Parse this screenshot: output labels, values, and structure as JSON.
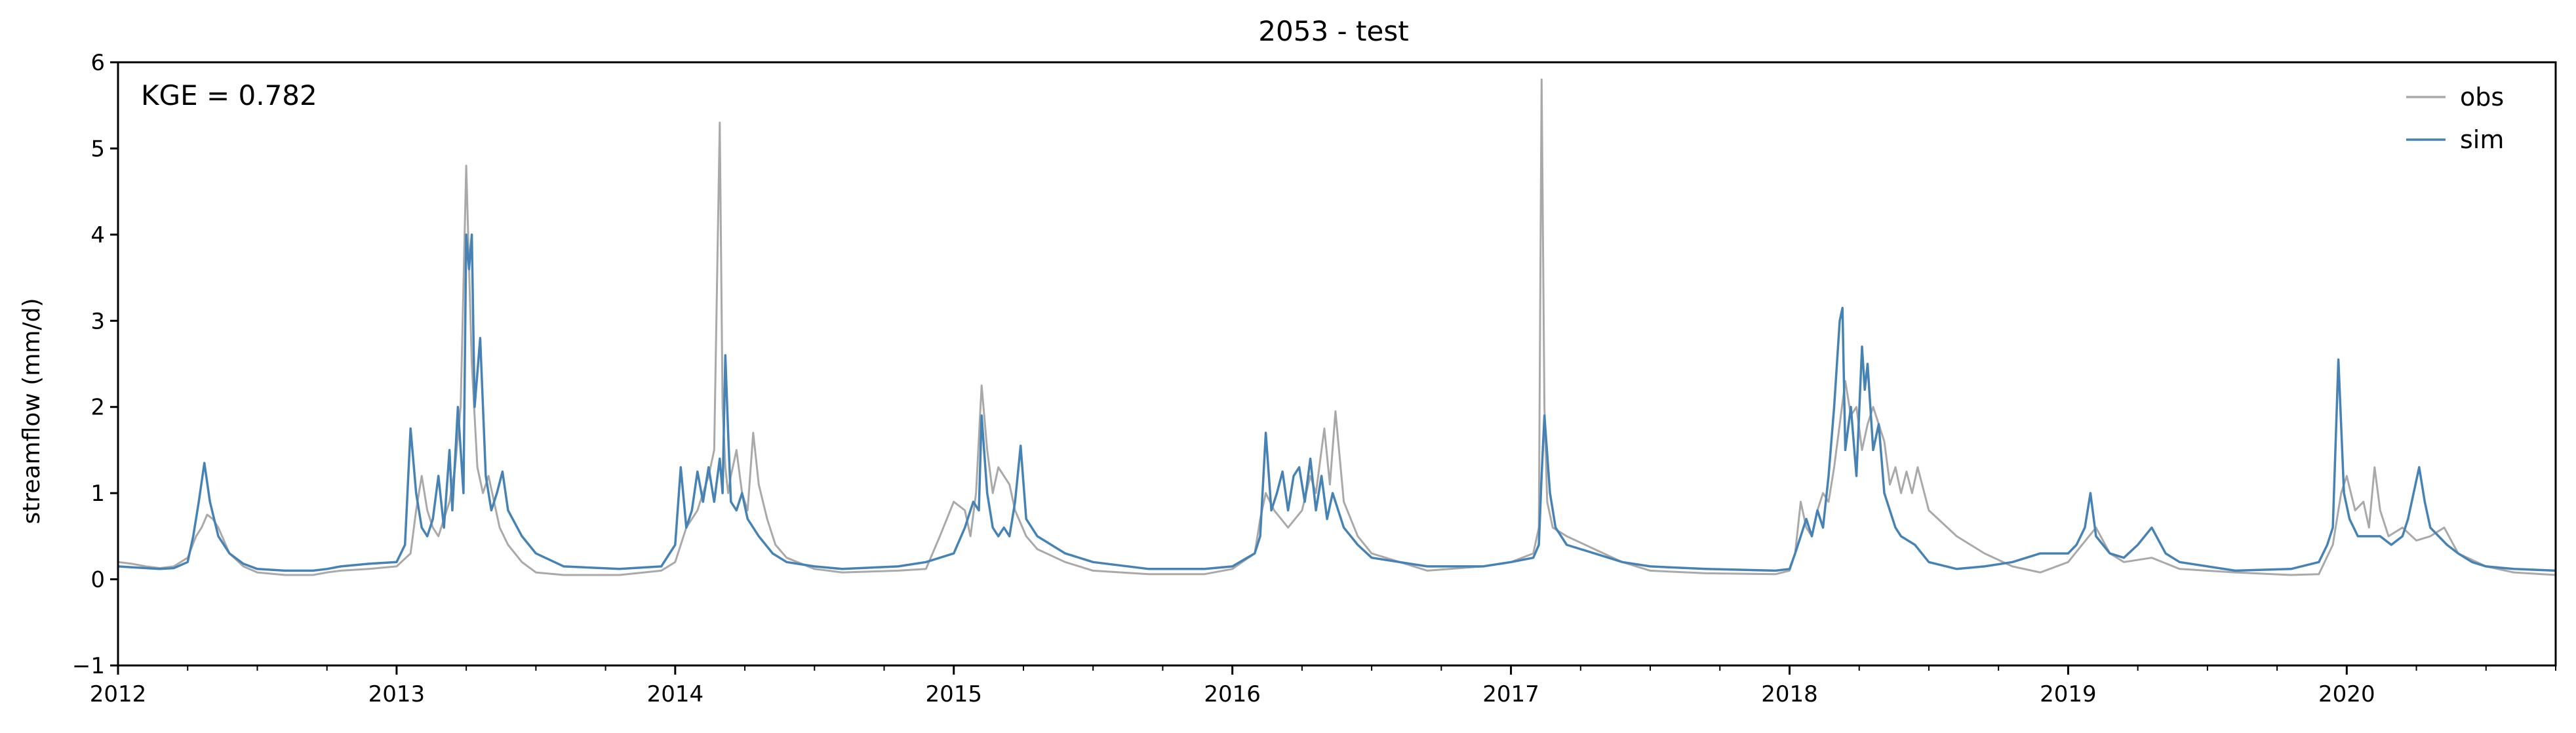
{
  "chart_data": {
    "type": "line",
    "title": "2053 - test",
    "xlabel": "",
    "ylabel": "streamflow (mm/d)",
    "annotation": "KGE = 0.782",
    "xlim": [
      2012.0,
      2020.75
    ],
    "ylim": [
      -1,
      6
    ],
    "x_ticks": [
      "2012",
      "2013",
      "2014",
      "2015",
      "2016",
      "2017",
      "2018",
      "2019",
      "2020"
    ],
    "y_ticks": [
      "−1",
      "0",
      "1",
      "2",
      "3",
      "4",
      "5",
      "6"
    ],
    "grid": false,
    "legend_position": "top-right",
    "series": [
      {
        "name": "obs",
        "color": "#a9a9a9",
        "x": [
          2012.0,
          2012.05,
          2012.1,
          2012.15,
          2012.2,
          2012.25,
          2012.28,
          2012.3,
          2012.32,
          2012.34,
          2012.36,
          2012.38,
          2012.4,
          2012.45,
          2012.5,
          2012.6,
          2012.7,
          2012.75,
          2012.8,
          2012.9,
          2013.0,
          2013.05,
          2013.07,
          2013.09,
          2013.11,
          2013.13,
          2013.15,
          2013.17,
          2013.19,
          2013.21,
          2013.23,
          2013.25,
          2013.27,
          2013.29,
          2013.31,
          2013.33,
          2013.35,
          2013.37,
          2013.4,
          2013.45,
          2013.5,
          2013.6,
          2013.8,
          2013.95,
          2014.0,
          2014.04,
          2014.08,
          2014.1,
          2014.12,
          2014.14,
          2014.16,
          2014.17,
          2014.18,
          2014.19,
          2014.2,
          2014.22,
          2014.24,
          2014.26,
          2014.28,
          2014.3,
          2014.33,
          2014.36,
          2014.4,
          2014.5,
          2014.6,
          2014.8,
          2014.9,
          2014.95,
          2015.0,
          2015.04,
          2015.06,
          2015.08,
          2015.1,
          2015.12,
          2015.14,
          2015.16,
          2015.18,
          2015.2,
          2015.22,
          2015.26,
          2015.3,
          2015.4,
          2015.5,
          2015.7,
          2015.9,
          2016.0,
          2016.08,
          2016.1,
          2016.12,
          2016.15,
          2016.2,
          2016.25,
          2016.28,
          2016.3,
          2016.33,
          2016.35,
          2016.37,
          2016.4,
          2016.45,
          2016.5,
          2016.7,
          2016.9,
          2017.0,
          2017.08,
          2017.1,
          2017.11,
          2017.12,
          2017.13,
          2017.15,
          2017.2,
          2017.3,
          2017.4,
          2017.5,
          2017.7,
          2017.95,
          2018.0,
          2018.02,
          2018.04,
          2018.06,
          2018.08,
          2018.1,
          2018.12,
          2018.14,
          2018.16,
          2018.18,
          2018.2,
          2018.22,
          2018.24,
          2018.26,
          2018.28,
          2018.3,
          2018.32,
          2018.34,
          2018.36,
          2018.38,
          2018.4,
          2018.42,
          2018.44,
          2018.46,
          2018.5,
          2018.6,
          2018.7,
          2018.8,
          2018.9,
          2019.0,
          2019.05,
          2019.1,
          2019.15,
          2019.2,
          2019.3,
          2019.4,
          2019.6,
          2019.8,
          2019.9,
          2019.95,
          2019.98,
          2020.0,
          2020.03,
          2020.06,
          2020.08,
          2020.1,
          2020.12,
          2020.15,
          2020.2,
          2020.25,
          2020.3,
          2020.35,
          2020.4,
          2020.5,
          2020.6,
          2020.75
        ],
        "y": [
          0.2,
          0.18,
          0.15,
          0.13,
          0.15,
          0.25,
          0.5,
          0.6,
          0.75,
          0.7,
          0.6,
          0.45,
          0.3,
          0.15,
          0.08,
          0.05,
          0.05,
          0.08,
          0.1,
          0.12,
          0.15,
          0.3,
          0.8,
          1.2,
          0.8,
          0.6,
          0.5,
          0.7,
          0.9,
          1.3,
          2.0,
          4.8,
          2.5,
          1.3,
          1.0,
          1.2,
          0.9,
          0.6,
          0.4,
          0.2,
          0.08,
          0.05,
          0.05,
          0.1,
          0.2,
          0.6,
          0.8,
          1.0,
          1.2,
          1.5,
          5.3,
          2.0,
          1.3,
          1.0,
          1.2,
          1.5,
          1.0,
          0.8,
          1.7,
          1.1,
          0.7,
          0.4,
          0.25,
          0.12,
          0.08,
          0.1,
          0.12,
          0.5,
          0.9,
          0.8,
          0.5,
          1.0,
          2.25,
          1.5,
          1.0,
          1.3,
          1.2,
          1.1,
          0.8,
          0.5,
          0.35,
          0.2,
          0.1,
          0.06,
          0.06,
          0.12,
          0.3,
          0.7,
          1.0,
          0.8,
          0.6,
          0.8,
          1.2,
          1.0,
          1.75,
          1.1,
          1.95,
          0.9,
          0.5,
          0.3,
          0.1,
          0.15,
          0.2,
          0.3,
          0.6,
          5.8,
          2.0,
          0.9,
          0.6,
          0.5,
          0.35,
          0.2,
          0.1,
          0.07,
          0.06,
          0.1,
          0.3,
          0.9,
          0.6,
          0.5,
          0.8,
          1.0,
          0.9,
          1.3,
          1.8,
          2.3,
          1.9,
          2.0,
          1.5,
          1.8,
          2.0,
          1.8,
          1.6,
          1.1,
          1.3,
          1.0,
          1.25,
          1.0,
          1.3,
          0.8,
          0.5,
          0.3,
          0.15,
          0.08,
          0.2,
          0.4,
          0.6,
          0.3,
          0.2,
          0.25,
          0.12,
          0.08,
          0.05,
          0.06,
          0.4,
          1.0,
          1.2,
          0.8,
          0.9,
          0.6,
          1.3,
          0.8,
          0.5,
          0.6,
          0.45,
          0.5,
          0.6,
          0.3,
          0.15,
          0.08,
          0.05
        ]
      },
      {
        "name": "sim",
        "color": "#4682b4",
        "x": [
          2012.0,
          2012.05,
          2012.1,
          2012.15,
          2012.2,
          2012.25,
          2012.27,
          2012.29,
          2012.31,
          2012.33,
          2012.36,
          2012.4,
          2012.45,
          2012.5,
          2012.6,
          2012.7,
          2012.75,
          2012.8,
          2012.9,
          2013.0,
          2013.03,
          2013.05,
          2013.07,
          2013.09,
          2013.11,
          2013.13,
          2013.15,
          2013.17,
          2013.19,
          2013.2,
          2013.22,
          2013.24,
          2013.25,
          2013.26,
          2013.27,
          2013.28,
          2013.3,
          2013.32,
          2013.34,
          2013.36,
          2013.38,
          2013.4,
          2013.45,
          2013.5,
          2013.6,
          2013.8,
          2013.95,
          2014.0,
          2014.02,
          2014.04,
          2014.06,
          2014.08,
          2014.1,
          2014.12,
          2014.14,
          2014.16,
          2014.17,
          2014.18,
          2014.19,
          2014.2,
          2014.22,
          2014.24,
          2014.26,
          2014.28,
          2014.3,
          2014.35,
          2014.4,
          2014.5,
          2014.6,
          2014.8,
          2014.9,
          2014.95,
          2015.0,
          2015.04,
          2015.07,
          2015.09,
          2015.1,
          2015.12,
          2015.14,
          2015.16,
          2015.18,
          2015.2,
          2015.22,
          2015.24,
          2015.26,
          2015.3,
          2015.4,
          2015.5,
          2015.7,
          2015.9,
          2016.0,
          2016.08,
          2016.1,
          2016.12,
          2016.14,
          2016.16,
          2016.18,
          2016.2,
          2016.22,
          2016.24,
          2016.26,
          2016.28,
          2016.3,
          2016.32,
          2016.34,
          2016.36,
          2016.4,
          2016.45,
          2016.5,
          2016.7,
          2016.9,
          2017.0,
          2017.08,
          2017.1,
          2017.11,
          2017.12,
          2017.14,
          2017.16,
          2017.2,
          2017.3,
          2017.4,
          2017.5,
          2017.7,
          2017.95,
          2018.0,
          2018.02,
          2018.04,
          2018.06,
          2018.08,
          2018.1,
          2018.12,
          2018.14,
          2018.16,
          2018.18,
          2018.19,
          2018.2,
          2018.22,
          2018.24,
          2018.26,
          2018.27,
          2018.28,
          2018.3,
          2018.32,
          2018.34,
          2018.36,
          2018.38,
          2018.4,
          2018.45,
          2018.5,
          2018.6,
          2018.7,
          2018.8,
          2018.9,
          2019.0,
          2019.03,
          2019.06,
          2019.08,
          2019.1,
          2019.15,
          2019.2,
          2019.25,
          2019.3,
          2019.35,
          2019.4,
          2019.6,
          2019.8,
          2019.9,
          2019.93,
          2019.95,
          2019.97,
          2019.99,
          2020.01,
          2020.04,
          2020.08,
          2020.12,
          2020.16,
          2020.2,
          2020.22,
          2020.24,
          2020.26,
          2020.28,
          2020.3,
          2020.33,
          2020.36,
          2020.4,
          2020.45,
          2020.5,
          2020.6,
          2020.75
        ],
        "y": [
          0.15,
          0.14,
          0.13,
          0.12,
          0.13,
          0.2,
          0.5,
          0.9,
          1.35,
          0.9,
          0.5,
          0.3,
          0.18,
          0.12,
          0.1,
          0.1,
          0.12,
          0.15,
          0.18,
          0.2,
          0.4,
          1.75,
          1.0,
          0.6,
          0.5,
          0.7,
          1.2,
          0.6,
          1.5,
          0.8,
          2.0,
          1.0,
          4.0,
          3.6,
          4.0,
          2.0,
          2.8,
          1.2,
          0.8,
          1.0,
          1.25,
          0.8,
          0.5,
          0.3,
          0.15,
          0.12,
          0.15,
          0.4,
          1.3,
          0.6,
          0.8,
          1.25,
          0.9,
          1.3,
          0.9,
          1.4,
          1.0,
          2.6,
          1.7,
          0.9,
          0.8,
          1.0,
          0.7,
          0.6,
          0.5,
          0.3,
          0.2,
          0.15,
          0.12,
          0.15,
          0.2,
          0.25,
          0.3,
          0.6,
          0.9,
          0.8,
          1.9,
          1.0,
          0.6,
          0.5,
          0.6,
          0.5,
          0.9,
          1.55,
          0.7,
          0.5,
          0.3,
          0.2,
          0.12,
          0.12,
          0.15,
          0.3,
          0.5,
          1.7,
          0.8,
          1.0,
          1.25,
          0.8,
          1.2,
          1.3,
          0.9,
          1.4,
          0.8,
          1.2,
          0.7,
          1.0,
          0.6,
          0.4,
          0.25,
          0.15,
          0.15,
          0.2,
          0.25,
          0.4,
          1.2,
          1.9,
          1.0,
          0.6,
          0.4,
          0.3,
          0.2,
          0.15,
          0.12,
          0.1,
          0.12,
          0.3,
          0.5,
          0.7,
          0.5,
          0.8,
          0.6,
          1.2,
          2.0,
          3.0,
          3.15,
          1.5,
          2.0,
          1.2,
          2.7,
          2.2,
          2.5,
          1.5,
          1.8,
          1.0,
          0.8,
          0.6,
          0.5,
          0.4,
          0.2,
          0.12,
          0.15,
          0.2,
          0.3,
          0.3,
          0.4,
          0.6,
          1.0,
          0.5,
          0.3,
          0.25,
          0.4,
          0.6,
          0.3,
          0.2,
          0.1,
          0.12,
          0.2,
          0.4,
          0.6,
          2.55,
          1.0,
          0.7,
          0.5,
          0.5,
          0.5,
          0.4,
          0.5,
          0.7,
          1.0,
          1.3,
          0.9,
          0.6,
          0.5,
          0.4,
          0.3,
          0.2,
          0.15,
          0.12,
          0.1
        ]
      }
    ]
  }
}
